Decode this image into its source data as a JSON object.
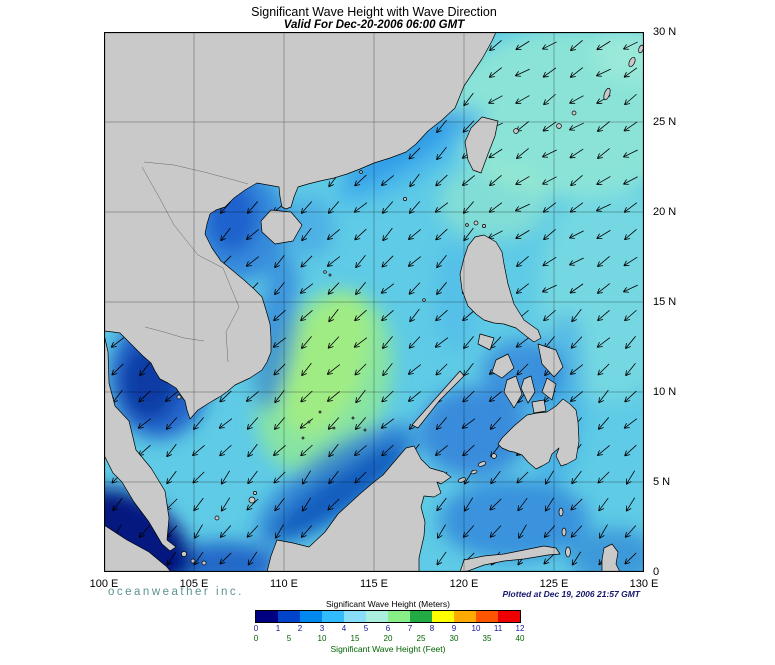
{
  "title": "Significant Wave Height with Wave Direction",
  "subtitle": "Valid For Dec-20-2006 06:00 GMT",
  "branding": "oceanweather inc.",
  "plotted_at": "Plotted at Dec 19, 2006 21:57 GMT",
  "axes": {
    "x_ticks": [
      "100 E",
      "105 E",
      "110 E",
      "115 E",
      "120 E",
      "125 E",
      "130 E"
    ],
    "y_ticks": [
      "30 N",
      "25 N",
      "20 N",
      "15 N",
      "10 N",
      "5 N",
      "0"
    ]
  },
  "legend": {
    "meters_label": "Significant Wave Height (Meters)",
    "feet_label": "Significant Wave Height (Feet)",
    "meters_ticks": [
      "0",
      "1",
      "2",
      "3",
      "4",
      "5",
      "6",
      "7",
      "8",
      "9",
      "10",
      "11",
      "12"
    ],
    "feet_ticks": [
      "0",
      "5",
      "10",
      "15",
      "20",
      "25",
      "30",
      "35",
      "40"
    ],
    "colors": [
      "#000080",
      "#0044cc",
      "#0088ee",
      "#33bbff",
      "#88ddf8",
      "#aaeedd",
      "#88ee88",
      "#22aa44",
      "#ffff00",
      "#ffaa00",
      "#ff5500",
      "#ee0000"
    ]
  },
  "map_colors": {
    "land": "#c9c9c9",
    "coastline": "#000000",
    "sea_base": "#5fcbe6",
    "grid": "#000000",
    "arrow": "#000000"
  },
  "chart_data": {
    "type": "heatmap",
    "title": "Significant Wave Height with Wave Direction",
    "valid_for": "Dec-20-2006 06:00 GMT",
    "plotted_at": "Dec 19, 2006 21:57 GMT",
    "source": "oceanweather inc.",
    "region": {
      "lon_range": [
        "100 E",
        "130 E"
      ],
      "lat_range": [
        "0",
        "30 N"
      ],
      "grid_spacing_deg": 5
    },
    "colorbar": {
      "units_top": "Meters",
      "units_bottom": "Feet",
      "meters_ticks": [
        0,
        1,
        2,
        3,
        4,
        5,
        6,
        7,
        8,
        9,
        10,
        11,
        12
      ],
      "feet_ticks": [
        0,
        5,
        10,
        15,
        20,
        25,
        30,
        35,
        40
      ],
      "colors": [
        "#000080",
        "#0044cc",
        "#0088ee",
        "#33bbff",
        "#88ddf8",
        "#aaeedd",
        "#88ee88",
        "#22aa44",
        "#ffff00",
        "#ffaa00",
        "#ff5500",
        "#ee0000"
      ]
    },
    "vector_overlay": "wave direction arrows pointing generally toward the southwest (northeast monsoon)",
    "field_values_m": [
      {
        "area": "central South China Sea (110-115E, 7-14N)",
        "sig_wave_height_m": "5-6"
      },
      {
        "area": "northern South China Sea and Luzon Strait",
        "sig_wave_height_m": "3-5"
      },
      {
        "area": "Philippine Sea east of the Philippines and Taiwan",
        "sig_wave_height_m": "3-5"
      },
      {
        "area": "Gulf of Tonkin",
        "sig_wave_height_m": "1-2"
      },
      {
        "area": "coastal shelves (China coast, NW Borneo, Sulu and Celebes Seas)",
        "sig_wave_height_m": "1-3"
      },
      {
        "area": "Gulf of Thailand",
        "sig_wave_height_m": "0-1"
      },
      {
        "area": "Malacca Strait (bottom-left corner)",
        "sig_wave_height_m": "0-1"
      }
    ]
  }
}
